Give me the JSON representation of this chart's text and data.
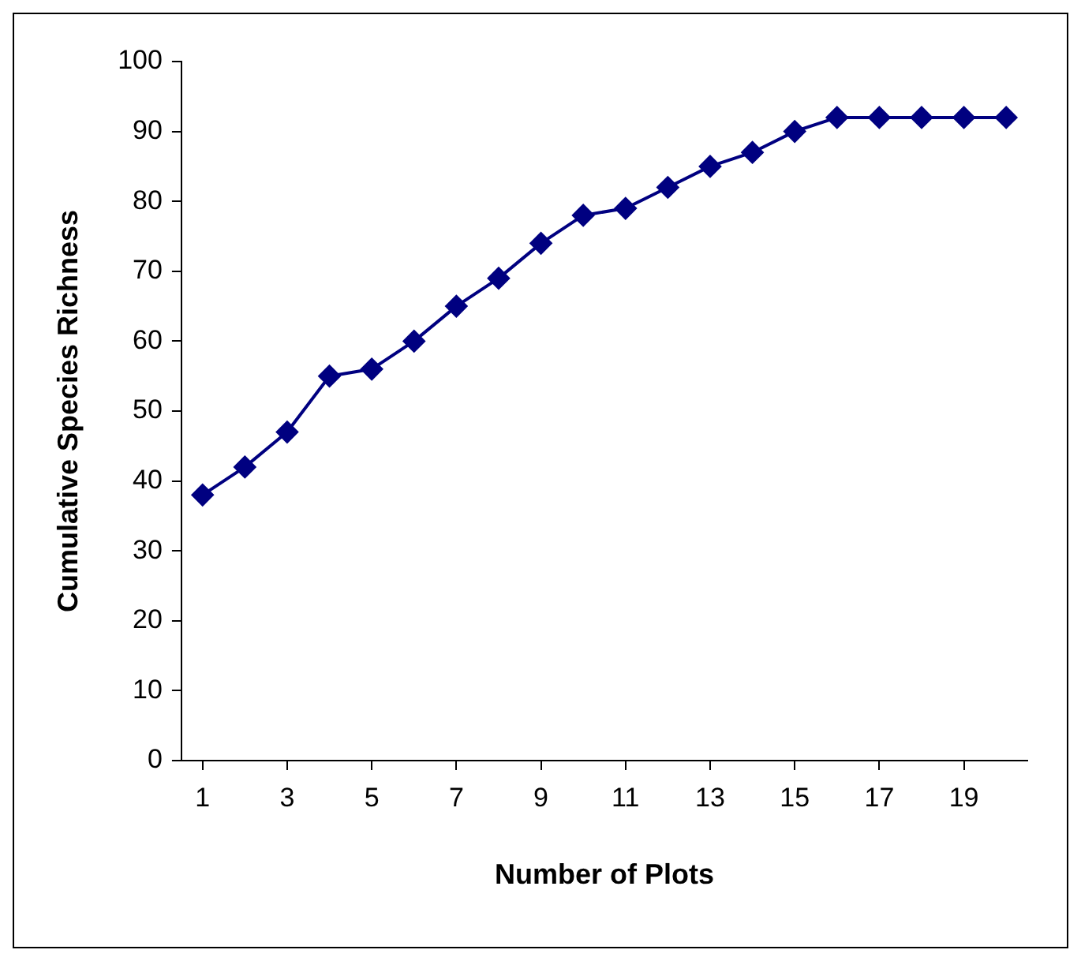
{
  "chart_data": {
    "type": "line",
    "xlabel": "Number of Plots",
    "ylabel": "Cumulative Species Richness",
    "x": [
      1,
      2,
      3,
      4,
      5,
      6,
      7,
      8,
      9,
      10,
      11,
      12,
      13,
      14,
      15,
      16,
      17,
      18,
      19,
      20
    ],
    "xlim": [
      0.5,
      20.5
    ],
    "xticks": [
      1,
      3,
      5,
      7,
      9,
      11,
      13,
      15,
      17,
      19
    ],
    "series": [
      {
        "color": "#000080",
        "values": [
          38,
          42,
          47,
          55,
          56,
          60,
          65,
          69,
          74,
          78,
          79,
          82,
          85,
          87,
          90,
          92,
          92,
          92,
          92,
          92
        ]
      }
    ],
    "ylim": [
      0,
      100
    ],
    "yticks": [
      0,
      10,
      20,
      30,
      40,
      50,
      60,
      70,
      80,
      90,
      100
    ],
    "grid": false,
    "legend": false,
    "marker": "diamond",
    "line_style": "solid"
  }
}
